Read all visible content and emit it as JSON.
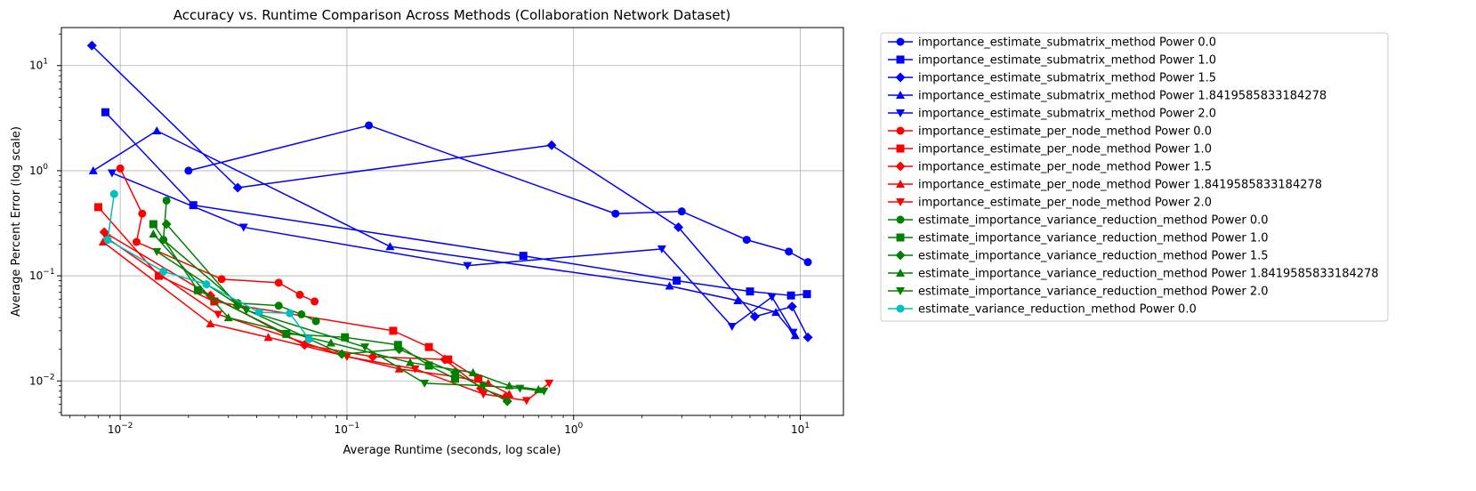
{
  "chart_data": {
    "type": "line",
    "title": "Accuracy vs. Runtime Comparison Across Methods (Collaboration Network Dataset)",
    "xlabel": "Average Runtime (seconds, log scale)",
    "ylabel": "Average Percent Error (log scale)",
    "xscale": "log",
    "yscale": "log",
    "xlim": [
      0.0055,
      15.5
    ],
    "ylim": [
      0.0047,
      23
    ],
    "xticks": [
      {
        "value": 0.01,
        "base": "10",
        "exp": "−2"
      },
      {
        "value": 0.1,
        "base": "10",
        "exp": "−1"
      },
      {
        "value": 1,
        "base": "10",
        "exp": "0"
      },
      {
        "value": 10,
        "base": "10",
        "exp": "1"
      }
    ],
    "yticks": [
      {
        "value": 0.01,
        "base": "10",
        "exp": "−2"
      },
      {
        "value": 0.1,
        "base": "10",
        "exp": "−1"
      },
      {
        "value": 1,
        "base": "10",
        "exp": "0"
      },
      {
        "value": 10,
        "base": "10",
        "exp": "1"
      }
    ],
    "grid": true,
    "legend_position": "outside-right",
    "series": [
      {
        "name": "importance_estimate_submatrix_method Power 0.0",
        "color": "#0000ff",
        "marker": "circle",
        "x": [
          0.02,
          0.125,
          1.53,
          3.0,
          5.8,
          8.9,
          10.8
        ],
        "y": [
          1.0,
          2.7,
          0.39,
          0.41,
          0.22,
          0.17,
          0.135
        ]
      },
      {
        "name": "importance_estimate_submatrix_method Power 1.0",
        "color": "#0000ff",
        "marker": "square",
        "x": [
          0.0086,
          0.021,
          0.6,
          2.85,
          6.0,
          9.1,
          10.7
        ],
        "y": [
          3.6,
          0.47,
          0.155,
          0.09,
          0.071,
          0.065,
          0.067
        ]
      },
      {
        "name": "importance_estimate_submatrix_method Power 1.5",
        "color": "#0000ff",
        "marker": "diamond",
        "x": [
          0.0075,
          0.033,
          0.8,
          2.9,
          6.3,
          9.2,
          10.8
        ],
        "y": [
          15.5,
          0.69,
          1.75,
          0.29,
          0.041,
          0.051,
          0.026
        ]
      },
      {
        "name": "importance_estimate_submatrix_method Power 1.8419585833184278",
        "color": "#0000ff",
        "marker": "triangle-up",
        "x": [
          0.0076,
          0.0145,
          0.155,
          2.65,
          5.3,
          7.8,
          9.5
        ],
        "y": [
          1.0,
          2.4,
          0.19,
          0.08,
          0.058,
          0.045,
          0.027
        ]
      },
      {
        "name": "importance_estimate_submatrix_method Power 2.0",
        "color": "#0000ff",
        "marker": "triangle-down",
        "x": [
          0.0092,
          0.035,
          0.34,
          2.45,
          5.0,
          7.5,
          9.3
        ],
        "y": [
          0.95,
          0.29,
          0.125,
          0.18,
          0.033,
          0.063,
          0.029
        ]
      },
      {
        "name": "importance_estimate_per_node_method Power 0.0",
        "color": "#ff0000",
        "marker": "circle",
        "x": [
          0.01,
          0.0125,
          0.0118,
          0.028,
          0.05,
          0.062,
          0.072
        ],
        "y": [
          1.05,
          0.39,
          0.21,
          0.093,
          0.086,
          0.066,
          0.057
        ]
      },
      {
        "name": "importance_estimate_per_node_method Power 1.0",
        "color": "#ff0000",
        "marker": "square",
        "x": [
          0.008,
          0.0148,
          0.026,
          0.16,
          0.23,
          0.28,
          0.38
        ],
        "y": [
          0.45,
          0.1,
          0.057,
          0.03,
          0.021,
          0.016,
          0.0105
        ]
      },
      {
        "name": "importance_estimate_per_node_method Power 1.5",
        "color": "#ff0000",
        "marker": "diamond",
        "x": [
          0.0085,
          0.025,
          0.065,
          0.13,
          0.27,
          0.39,
          0.5
        ],
        "y": [
          0.26,
          0.065,
          0.022,
          0.017,
          0.016,
          0.0085,
          0.007
        ]
      },
      {
        "name": "importance_estimate_per_node_method Power 1.8419585833184278",
        "color": "#ff0000",
        "marker": "triangle-up",
        "x": [
          0.0084,
          0.025,
          0.045,
          0.17,
          0.3,
          0.42,
          0.52
        ],
        "y": [
          0.21,
          0.035,
          0.026,
          0.013,
          0.011,
          0.0095,
          0.0075
        ]
      },
      {
        "name": "importance_estimate_per_node_method Power 2.0",
        "color": "#ff0000",
        "marker": "triangle-down",
        "x": [
          0.0087,
          0.027,
          0.1,
          0.2,
          0.4,
          0.62,
          0.78
        ],
        "y": [
          0.23,
          0.043,
          0.017,
          0.013,
          0.0075,
          0.0065,
          0.0095
        ]
      },
      {
        "name": "estimate_importance_variance_reduction_method Power 0.0",
        "color": "#008000",
        "marker": "circle",
        "x": [
          0.016,
          0.0155,
          0.033,
          0.05,
          0.063,
          0.073
        ],
        "y": [
          0.52,
          0.22,
          0.055,
          0.052,
          0.043,
          0.037
        ]
      },
      {
        "name": "estimate_importance_variance_reduction_method Power 1.0",
        "color": "#008000",
        "marker": "square",
        "x": [
          0.014,
          0.022,
          0.054,
          0.098,
          0.168,
          0.23,
          0.3
        ],
        "y": [
          0.31,
          0.073,
          0.028,
          0.026,
          0.022,
          0.014,
          0.0105
        ]
      },
      {
        "name": "estimate_importance_variance_reduction_method Power 1.5",
        "color": "#008000",
        "marker": "diamond",
        "x": [
          0.016,
          0.033,
          0.095,
          0.17,
          0.3,
          0.51
        ],
        "y": [
          0.31,
          0.052,
          0.018,
          0.02,
          0.012,
          0.0064
        ]
      },
      {
        "name": "estimate_importance_variance_reduction_method Power 1.8419585833184278",
        "color": "#008000",
        "marker": "triangle-up",
        "x": [
          0.014,
          0.03,
          0.085,
          0.19,
          0.36,
          0.52,
          0.7
        ],
        "y": [
          0.25,
          0.04,
          0.023,
          0.015,
          0.012,
          0.009,
          0.0083
        ]
      },
      {
        "name": "estimate_importance_variance_reduction_method Power 2.0",
        "color": "#008000",
        "marker": "triangle-down",
        "x": [
          0.0145,
          0.036,
          0.12,
          0.22,
          0.4,
          0.58,
          0.74
        ],
        "y": [
          0.17,
          0.047,
          0.021,
          0.0095,
          0.009,
          0.0085,
          0.008
        ]
      },
      {
        "name": "estimate_variance_reduction_method Power 0.0",
        "color": "#00bfbf",
        "marker": "circle",
        "x": [
          0.0094,
          0.0088,
          0.0155,
          0.024,
          0.041,
          0.056,
          0.068
        ],
        "y": [
          0.6,
          0.22,
          0.11,
          0.083,
          0.045,
          0.044,
          0.025
        ]
      }
    ]
  }
}
